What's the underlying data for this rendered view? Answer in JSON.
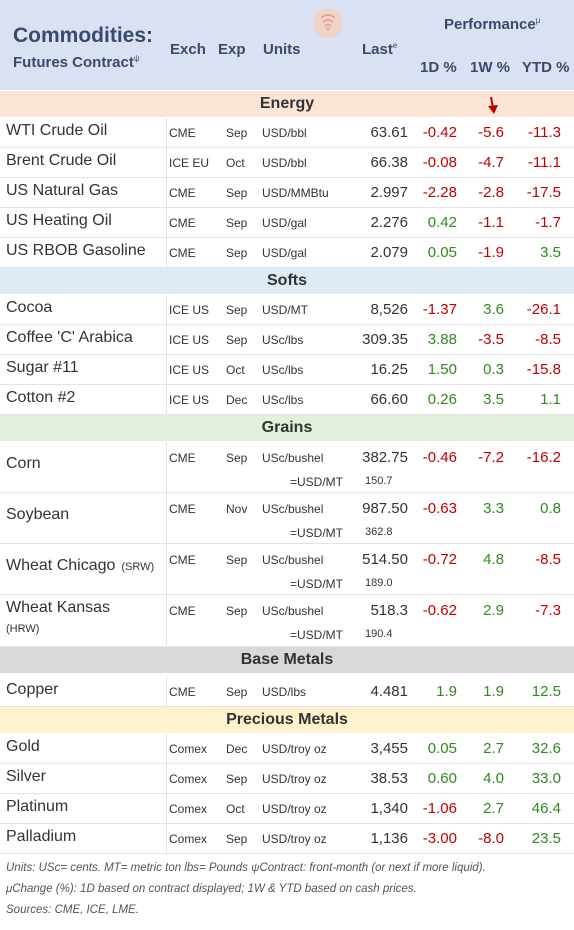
{
  "header": {
    "title": "Commodities:",
    "subtitle": "Futures Contract",
    "subtitle_mark": "ψ",
    "cols": {
      "exch": "Exch",
      "exp": "Exp",
      "units": "Units",
      "last": "Last",
      "last_mark": "e",
      "performance": "Performance",
      "performance_mark": "μ",
      "d1": "1D %",
      "w1": "1W %",
      "ytd": "YTD %"
    }
  },
  "sections": [
    {
      "title": "Energy",
      "color": "#fce4d6",
      "rows": [
        {
          "name": "WTI Crude Oil",
          "exch": "CME",
          "exp": "Sep",
          "units": "USD/bbl",
          "last": "63.61",
          "d1": "-0.42",
          "w1": "-5.6",
          "ytd": "-11.3"
        },
        {
          "name": "Brent Crude Oil",
          "exch": "ICE EU",
          "exp": "Oct",
          "units": "USD/bbl",
          "last": "66.38",
          "d1": "-0.08",
          "w1": "-4.7",
          "ytd": "-11.1"
        },
        {
          "name": "US Natural Gas",
          "exch": "CME",
          "exp": "Sep",
          "units": "USD/MMBtu",
          "last": "2.997",
          "d1": "-2.28",
          "w1": "-2.8",
          "ytd": "-17.5"
        },
        {
          "name": "US Heating Oil",
          "exch": "CME",
          "exp": "Sep",
          "units": "USD/gal",
          "last": "2.276",
          "d1": "0.42",
          "w1": "-1.1",
          "ytd": "-1.7"
        },
        {
          "name": "US RBOB Gasoline",
          "exch": "CME",
          "exp": "Sep",
          "units": "USD/gal",
          "last": "2.079",
          "d1": "0.05",
          "w1": "-1.9",
          "ytd": "3.5"
        }
      ]
    },
    {
      "title": "Softs",
      "color": "#ddebf7",
      "rows": [
        {
          "name": "Cocoa",
          "exch": "ICE US",
          "exp": "Sep",
          "units": "USD/MT",
          "last": "8,526",
          "d1": "-1.37",
          "w1": "3.6",
          "ytd": "-26.1"
        },
        {
          "name": "Coffee 'C' Arabica",
          "exch": "ICE US",
          "exp": "Sep",
          "units": "USc/lbs",
          "last": "309.35",
          "d1": "3.88",
          "w1": "-3.5",
          "ytd": "-8.5"
        },
        {
          "name": "Sugar #11",
          "exch": "ICE US",
          "exp": "Oct",
          "units": "USc/lbs",
          "last": "16.25",
          "d1": "1.50",
          "w1": "0.3",
          "ytd": "-15.8"
        },
        {
          "name": "Cotton #2",
          "exch": "ICE US",
          "exp": "Dec",
          "units": "USc/lbs",
          "last": "66.60",
          "d1": "0.26",
          "w1": "3.5",
          "ytd": "1.1"
        }
      ]
    },
    {
      "title": "Grains",
      "color": "#e2efda",
      "rows": [
        {
          "name": "Corn",
          "name_sub": "",
          "exch": "CME",
          "exp": "Sep",
          "units": "USc/bushel",
          "last": "382.75",
          "d1": "-0.46",
          "w1": "-7.2",
          "ytd": "-16.2",
          "conv_units": "=USD/MT",
          "conv_value": "150.7"
        },
        {
          "name": "Soybean",
          "name_sub": "",
          "exch": "CME",
          "exp": "Nov",
          "units": "USc/bushel",
          "last": "987.50",
          "d1": "-0.63",
          "w1": "3.3",
          "ytd": "0.8",
          "conv_units": "=USD/MT",
          "conv_value": "362.8"
        },
        {
          "name": "Wheat Chicago",
          "name_sub": "(SRW)",
          "exch": "CME",
          "exp": "Sep",
          "units": "USc/bushel",
          "last": "514.50",
          "d1": "-0.72",
          "w1": "4.8",
          "ytd": "-8.5",
          "conv_units": "=USD/MT",
          "conv_value": "189.0"
        },
        {
          "name": "Wheat Kansas",
          "name_sub": "(HRW)",
          "exch": "CME",
          "exp": "Sep",
          "units": "USc/bushel",
          "last": "518.3",
          "d1": "-0.62",
          "w1": "2.9",
          "ytd": "-7.3",
          "conv_units": "=USD/MT",
          "conv_value": "190.4"
        }
      ]
    },
    {
      "title": "Base Metals",
      "color": "#d9d9d9",
      "rows": [
        {
          "name": "Copper",
          "exch": "CME",
          "exp": "Sep",
          "units": "USD/lbs",
          "last": "4.481",
          "d1": "1.9",
          "w1": "1.9",
          "ytd": "12.5"
        }
      ]
    },
    {
      "title": "Precious Metals",
      "color": "#fff2cc",
      "rows": [
        {
          "name": "Gold",
          "exch": "Comex",
          "exp": "Dec",
          "units": "USD/troy oz",
          "last": "3,455",
          "d1": "0.05",
          "w1": "2.7",
          "ytd": "32.6"
        },
        {
          "name": "Silver",
          "exch": "Comex",
          "exp": "Sep",
          "units": "USD/troy oz",
          "last": "38.53",
          "d1": "0.60",
          "w1": "4.0",
          "ytd": "33.0"
        },
        {
          "name": "Platinum",
          "exch": "Comex",
          "exp": "Oct",
          "units": "USD/troy oz",
          "last": "1,340",
          "d1": "-1.06",
          "w1": "2.7",
          "ytd": "46.4"
        },
        {
          "name": "Palladium",
          "exch": "Comex",
          "exp": "Sep",
          "units": "USD/troy oz",
          "last": "1,136",
          "d1": "-3.00",
          "w1": "-8.0",
          "ytd": "23.5"
        }
      ]
    }
  ],
  "footer": {
    "line1": "Units: USc= cents.   MT= metric ton   lbs= Pounds  ψContract: front-month (or next if more liquid).",
    "line2": "μChange (%): 1D based on contract displayed; 1W & YTD based on cash prices.",
    "line3": "Sources: CME, ICE, LME."
  },
  "colors": {
    "negative": "#c00000",
    "positive": "#2e8b1e",
    "header_bg": "#d9e1f2",
    "arrow": "#c00000"
  },
  "icons": {
    "logo": "wifi-signal-logo",
    "indicator": "down-arrow-icon"
  }
}
